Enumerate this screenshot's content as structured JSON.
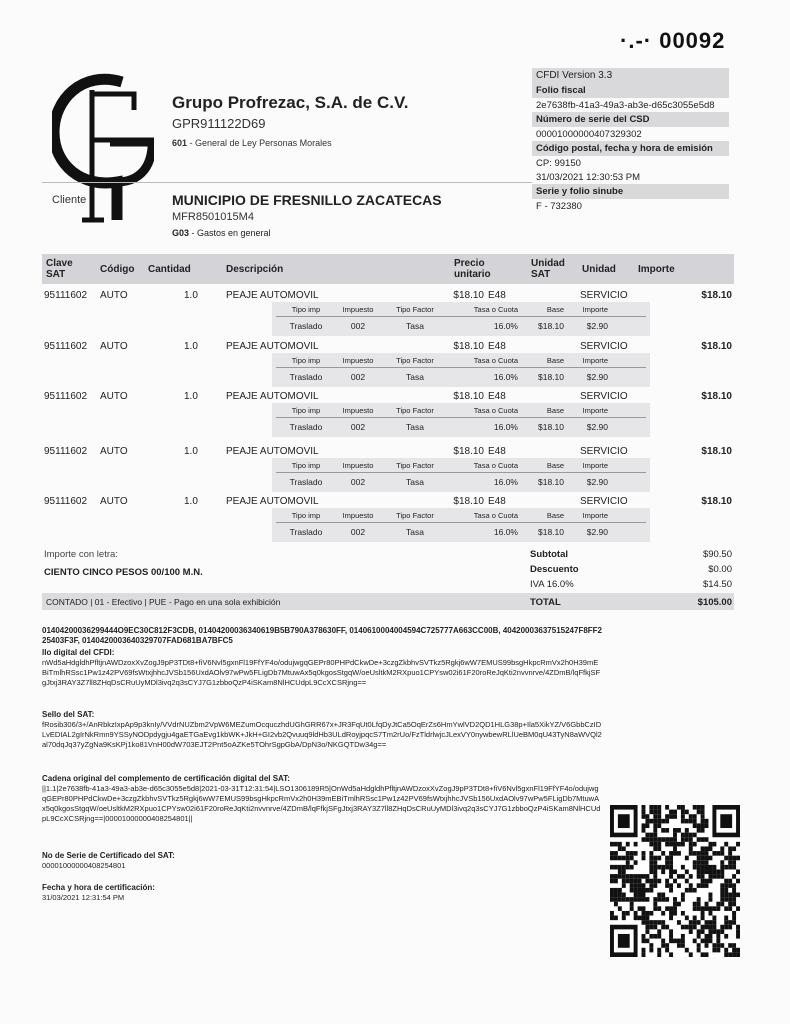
{
  "header": {
    "folio_number": "00092"
  },
  "emitter": {
    "logo_text": "GF",
    "name": "Grupo Profrezac, S.A. de C.V.",
    "rfc": "GPR911122D69",
    "regimen_code": "601",
    "regimen_desc": " - General de Ley Personas Morales"
  },
  "cfdi": {
    "version": "CFDI Version 3.3",
    "folio_fiscal_label": "Folio fiscal",
    "folio_fiscal": "2e7638fb-41a3-49a3-ab3e-d65c3055e5d8",
    "csd_label": "Número de serie del CSD",
    "csd": "00001000000407329302",
    "emision_label": "Código postal, fecha y hora de emisión",
    "cp": "CP: 99150",
    "fecha": "31/03/2021 12:30:53 PM",
    "serie_label": "Serie y folio sinube",
    "serie": "F - 732380"
  },
  "client": {
    "label": "Cliente",
    "name": "MUNICIPIO DE FRESNILLO ZACATECAS",
    "rfc": "MFR8501015M4",
    "uso_code": "G03",
    "uso_desc": " - Gastos en general"
  },
  "table": {
    "headers": [
      "Clave SAT",
      "Código",
      "Cantidad",
      "Descripción",
      "Precio unitario",
      "Unidad SAT",
      "Unidad",
      "Importe"
    ],
    "tax_headers": [
      "Tipo imp",
      "Impuesto",
      "Tipo Factor",
      "Tasa o Cuota",
      "Base",
      "Importe"
    ],
    "items": [
      {
        "clave": "95111602",
        "codigo": "AUTO",
        "cantidad": "1.0",
        "descripcion": "PEAJE AUTOMOVIL",
        "precio": "$18.10",
        "unidad_sat": "E48",
        "unidad": "SERVICIO",
        "importe": "$18.10",
        "tax": [
          "Traslado",
          "002",
          "Tasa",
          "16.0%",
          "$18.10",
          "$2.90"
        ]
      },
      {
        "clave": "95111602",
        "codigo": "AUTO",
        "cantidad": "1.0",
        "descripcion": "PEAJE AUTOMOVIL",
        "precio": "$18.10",
        "unidad_sat": "E48",
        "unidad": "SERVICIO",
        "importe": "$18.10",
        "tax": [
          "Traslado",
          "002",
          "Tasa",
          "16.0%",
          "$18.10",
          "$2.90"
        ]
      },
      {
        "clave": "95111602",
        "codigo": "AUTO",
        "cantidad": "1.0",
        "descripcion": "PEAJE AUTOMOVIL",
        "precio": "$18.10",
        "unidad_sat": "E48",
        "unidad": "SERVICIO",
        "importe": "$18.10",
        "tax": [
          "Traslado",
          "002",
          "Tasa",
          "16.0%",
          "$18.10",
          "$2.90"
        ]
      },
      {
        "clave": "95111602",
        "codigo": "AUTO",
        "cantidad": "1.0",
        "descripcion": "PEAJE AUTOMOVIL",
        "precio": "$18.10",
        "unidad_sat": "E48",
        "unidad": "SERVICIO",
        "importe": "$18.10",
        "tax": [
          "Traslado",
          "002",
          "Tasa",
          "16.0%",
          "$18.10",
          "$2.90"
        ]
      },
      {
        "clave": "95111602",
        "codigo": "AUTO",
        "cantidad": "1.0",
        "descripcion": "PEAJE AUTOMOVIL",
        "precio": "$18.10",
        "unidad_sat": "E48",
        "unidad": "SERVICIO",
        "importe": "$18.10",
        "tax": [
          "Traslado",
          "002",
          "Tasa",
          "16.0%",
          "$18.10",
          "$2.90"
        ]
      }
    ]
  },
  "totals": {
    "letra_label": "Importe con letra:",
    "letra": "CIENTO CINCO PESOS 00/100 M.N.",
    "subtotal_label": "Subtotal",
    "subtotal": "$90.50",
    "descuento_label": "Descuento",
    "descuento": "$0.00",
    "iva_label": "IVA 16.0%",
    "iva": "$14.50",
    "payment": "CONTADO  |  01 - Efectivo  |  PUE - Pago en una sola exhibición",
    "total_label": "TOTAL",
    "total": "$105.00"
  },
  "stamps": {
    "uuids": "01404200036299444O9EC30C812F3CDB, 01404200036340619B5B790A378630FF, 0140610004004594C725777A663CC00B, 404200036375152​47F8FF225403F3F, 0140420003640329707FAD681BA7BFC5",
    "sello_cfdi_label": "llo digital del CFDI:",
    "sello_cfdi": "nWd5aHdgldhPfltjnAWDzoxXvZogJ9pP3TDt8+fiV6Nvl5gxnFl19FfYF4o/odujwgqGEPr80PHPdCkwDe+3czgZkbhvSVTkz5Rgkj6wW7EMUS99bsgHkpcRmVx2h0H39mEBiTmlhRSsc1Pw1z42PV69fsWtxjhhcJVSb156UxdAOlv97wPw5FLigDb7MtuwAx5q0kgosStgqW/oeUsltkM2RXpuo1CPYsw02i61F20roReJqKti2nvvnrve/4ZDmB/lqFfkjSFgJtxj3RAY3Z7ll8ZHqDsCRuUyMDl3ivq2q3sCYJ7G1zbboQzP4iSKam8NlHCUdpL9CcXCSRjng==",
    "sello_sat_label": "Sello del SAT:",
    "sello_sat": "fRosib306/3+/AnRbkzIxpAp9p3knIy/VVdrNUZbm2VpW6MEZumOcquczhdUGhGRR67x+JR3FqUt0LfqDyJtCa5OqErZs6HmYwlVD2QD1HLG38p+Ila5XikYZ/V6GbbCzIDLvEDIAL2gIrNkRmn9YSSyNODpdygju4gaETGaEvg1kbWK+JkH+GI2vb2Qvuuq9ldHb3ULdRoyjpqcS7Tm2rUo/FzTldrlwjcJLexVY0nywbewRLlUeBM0qU43TyN8aWVQl2al70dqJq37yZgNa9KsKPj1ko81VnH00dW703EJT2Pnt5oAZKe5TOhrSgpGbA/DpN3o/NKGQTDw34g==",
    "cadena_label": "Cadena original del complemento de certificación digital del SAT:",
    "cadena": "||1.1|2e7638fb-41a3-49a3-ab3e-d65c3055e5d8|2021-03-31T12:31:54|LSO1306189R5|OnWd5aHdgldhPfltjnAWDzoxXvZogJ9pP3TDt8+fiV6Nvl5gxnFl19FfYF4o/odujwgqGEPr80PHPdCkwDe+3czgZkbhvSVTkz5Rgkj6wW7EMUS99bsgHkpcRmVx2h0H39mEBiTmlhRSsc1Pw1z42PV69fsWtxjhhcJVSb156UxdAOlv97wPw5FLigDb7MtuwAx5q0kgosStgqW/oeUsltkM2RXpuo1CPYsw02i61F20roReJqKti2nvvnrve/4ZDmB/lqFfkjSFgJtxj3RAY3Z7ll8ZHqDsCRuUyMDl3ivq2q3sCYJ7G1zbboQzP4iSKam8NlHCUdpL9CcXCSRjng==|00001000000408254801||",
    "cert_label": "No de Serie de Certificado del SAT:",
    "cert": "00001000000408254801",
    "fecha_cert_label": "Fecha y hora de certificación:",
    "fecha_cert": "31/03/2021 12:31:54 PM"
  }
}
